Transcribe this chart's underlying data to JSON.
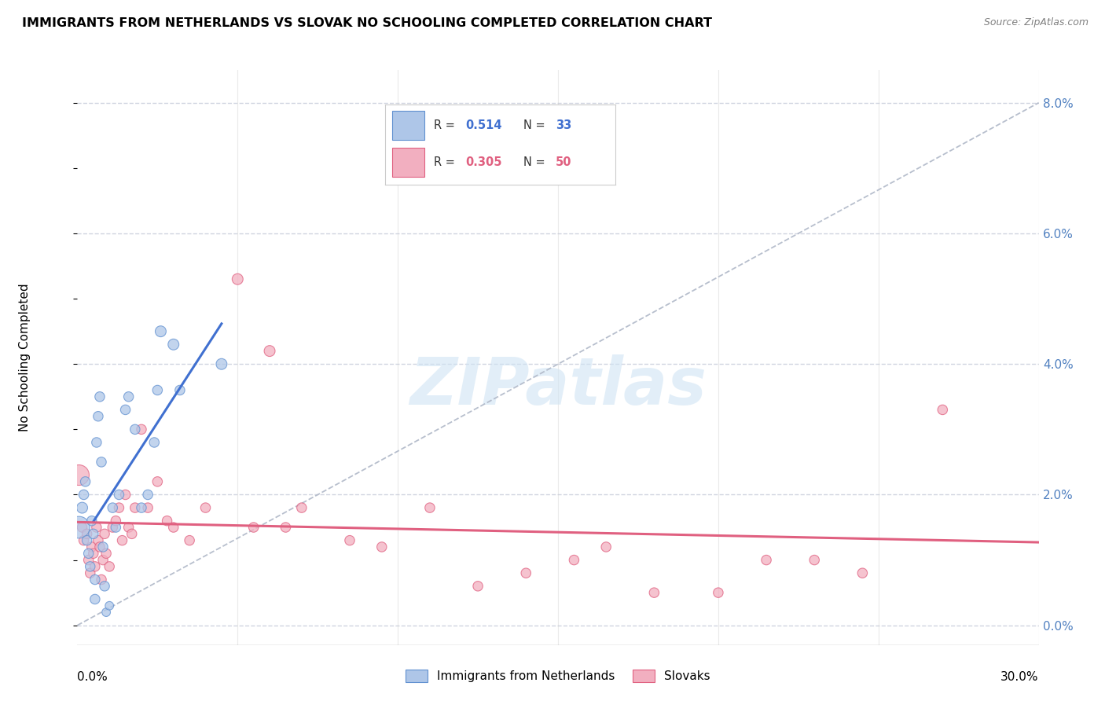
{
  "title": "IMMIGRANTS FROM NETHERLANDS VS SLOVAK NO SCHOOLING COMPLETED CORRELATION CHART",
  "source": "Source: ZipAtlas.com",
  "ylabel": "No Schooling Completed",
  "right_yticks": [
    "0.0%",
    "2.0%",
    "4.0%",
    "6.0%",
    "8.0%"
  ],
  "right_ytick_vals": [
    0.0,
    2.0,
    4.0,
    6.0,
    8.0
  ],
  "xlim": [
    0.0,
    30.0
  ],
  "ylim": [
    -0.3,
    8.5
  ],
  "legend_blue_r": "0.514",
  "legend_blue_n": "33",
  "legend_pink_r": "0.305",
  "legend_pink_n": "50",
  "legend_label_blue": "Immigrants from Netherlands",
  "legend_label_pink": "Slovaks",
  "blue_color": "#aec6e8",
  "pink_color": "#f2afc0",
  "blue_edge_color": "#6090d0",
  "pink_edge_color": "#e06080",
  "blue_line_color": "#4070d0",
  "pink_line_color": "#e06080",
  "dashed_line_color": "#b0b8c8",
  "grid_color": "#d0d4e0",
  "background_color": "#ffffff",
  "watermark_color": "#d0e4f4",
  "blue_scatter_x": [
    0.05,
    0.15,
    0.2,
    0.3,
    0.35,
    0.4,
    0.45,
    0.5,
    0.55,
    0.6,
    0.65,
    0.7,
    0.75,
    0.8,
    0.85,
    0.9,
    1.0,
    1.1,
    1.2,
    1.3,
    1.5,
    1.6,
    1.8,
    2.0,
    2.2,
    2.4,
    2.5,
    2.6,
    3.0,
    3.2,
    4.5,
    0.25,
    0.55
  ],
  "blue_scatter_y": [
    1.5,
    1.8,
    2.0,
    1.3,
    1.1,
    0.9,
    1.6,
    1.4,
    0.4,
    2.8,
    3.2,
    3.5,
    2.5,
    1.2,
    0.6,
    0.2,
    0.3,
    1.8,
    1.5,
    2.0,
    3.3,
    3.5,
    3.0,
    1.8,
    2.0,
    2.8,
    3.6,
    4.5,
    4.3,
    3.6,
    4.0,
    2.2,
    0.7
  ],
  "blue_marker_sizes": [
    400,
    100,
    80,
    80,
    80,
    80,
    80,
    80,
    80,
    80,
    80,
    80,
    80,
    80,
    80,
    60,
    60,
    80,
    80,
    80,
    80,
    80,
    80,
    80,
    80,
    80,
    80,
    100,
    100,
    80,
    100,
    80,
    80
  ],
  "pink_scatter_x": [
    0.05,
    0.15,
    0.2,
    0.3,
    0.35,
    0.4,
    0.45,
    0.5,
    0.55,
    0.6,
    0.65,
    0.7,
    0.75,
    0.8,
    0.85,
    0.9,
    1.0,
    1.1,
    1.2,
    1.3,
    1.4,
    1.5,
    1.6,
    1.7,
    1.8,
    2.0,
    2.2,
    2.5,
    2.8,
    3.0,
    3.5,
    4.0,
    5.0,
    5.5,
    6.0,
    6.5,
    7.0,
    8.5,
    9.5,
    11.0,
    12.5,
    14.0,
    15.5,
    16.5,
    18.0,
    20.0,
    21.5,
    23.0,
    24.5,
    27.0
  ],
  "pink_scatter_y": [
    2.3,
    1.5,
    1.3,
    1.4,
    1.0,
    0.8,
    1.2,
    1.1,
    0.9,
    1.5,
    1.3,
    1.2,
    0.7,
    1.0,
    1.4,
    1.1,
    0.9,
    1.5,
    1.6,
    1.8,
    1.3,
    2.0,
    1.5,
    1.4,
    1.8,
    3.0,
    1.8,
    2.2,
    1.6,
    1.5,
    1.3,
    1.8,
    5.3,
    1.5,
    4.2,
    1.5,
    1.8,
    1.3,
    1.2,
    1.8,
    0.6,
    0.8,
    1.0,
    1.2,
    0.5,
    0.5,
    1.0,
    1.0,
    0.8,
    3.3
  ],
  "pink_marker_sizes": [
    350,
    80,
    80,
    80,
    80,
    80,
    80,
    80,
    80,
    80,
    80,
    80,
    80,
    80,
    80,
    80,
    80,
    80,
    80,
    80,
    80,
    80,
    80,
    80,
    80,
    80,
    80,
    80,
    80,
    80,
    80,
    80,
    100,
    80,
    100,
    80,
    80,
    80,
    80,
    80,
    80,
    80,
    80,
    80,
    80,
    80,
    80,
    80,
    80,
    80
  ]
}
